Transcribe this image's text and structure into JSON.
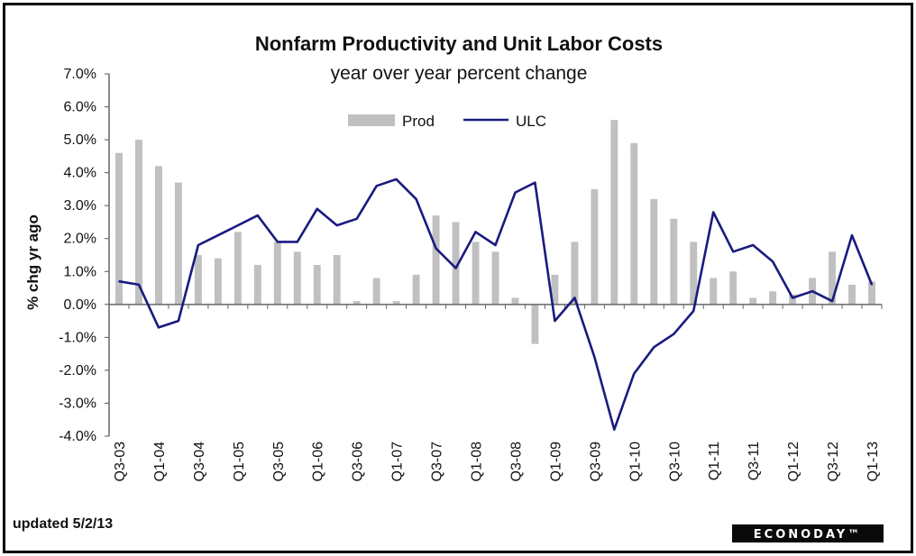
{
  "chart_data": {
    "type": "bar",
    "title": "Nonfarm Productivity and Unit Labor Costs",
    "subtitle": "year over year percent change",
    "ylabel": "% chg yr ago",
    "ylim": [
      -4.0,
      7.0
    ],
    "yticks": [
      "7.0%",
      "6.0%",
      "5.0%",
      "4.0%",
      "3.0%",
      "2.0%",
      "1.0%",
      "0.0%",
      "-1.0%",
      "-2.0%",
      "-3.0%",
      "-4.0%"
    ],
    "legend_position": "top-center",
    "grid": false,
    "categories": [
      "Q3-03",
      "Q4-03",
      "Q1-04",
      "Q2-04",
      "Q3-04",
      "Q4-04",
      "Q1-05",
      "Q2-05",
      "Q3-05",
      "Q4-05",
      "Q1-06",
      "Q2-06",
      "Q3-06",
      "Q4-06",
      "Q1-07",
      "Q2-07",
      "Q3-07",
      "Q4-07",
      "Q1-08",
      "Q2-08",
      "Q3-08",
      "Q4-08",
      "Q1-09",
      "Q2-09",
      "Q3-09",
      "Q4-09",
      "Q1-10",
      "Q2-10",
      "Q3-10",
      "Q4-10",
      "Q1-11",
      "Q2-11",
      "Q3-11",
      "Q4-11",
      "Q1-12",
      "Q2-12",
      "Q3-12",
      "Q4-12",
      "Q1-13"
    ],
    "xtick_labels": [
      "Q3-03",
      "Q1-04",
      "Q3-04",
      "Q1-05",
      "Q3-05",
      "Q1-06",
      "Q3-06",
      "Q1-07",
      "Q3-07",
      "Q1-08",
      "Q3-08",
      "Q1-09",
      "Q3-09",
      "Q1-10",
      "Q3-10",
      "Q1-11",
      "Q3-11",
      "Q1-12",
      "Q3-12",
      "Q1-13"
    ],
    "series": [
      {
        "name": "Prod",
        "type": "bar",
        "color": "#c0c0c0",
        "values": [
          4.6,
          5.0,
          4.2,
          3.7,
          1.5,
          1.4,
          2.2,
          1.2,
          1.9,
          1.6,
          1.2,
          1.5,
          0.1,
          0.8,
          0.1,
          0.9,
          2.7,
          2.5,
          1.9,
          1.6,
          0.2,
          -1.2,
          0.9,
          1.9,
          3.5,
          5.6,
          4.9,
          3.2,
          2.6,
          1.9,
          0.8,
          1.0,
          0.2,
          0.4,
          0.3,
          0.8,
          1.6,
          0.6,
          0.7
        ]
      },
      {
        "name": "ULC",
        "type": "line",
        "color": "#1a1a80",
        "values": [
          0.7,
          0.6,
          -0.7,
          -0.5,
          1.8,
          2.1,
          2.4,
          2.7,
          1.9,
          1.9,
          2.9,
          2.4,
          2.6,
          3.6,
          3.8,
          3.2,
          1.7,
          1.1,
          2.2,
          1.8,
          3.4,
          3.7,
          -0.5,
          0.2,
          -1.6,
          -3.8,
          -2.1,
          -1.3,
          -0.9,
          -0.2,
          2.8,
          1.6,
          1.8,
          1.3,
          0.2,
          0.4,
          0.1,
          2.1,
          0.6
        ]
      }
    ]
  },
  "footer": {
    "updated": "updated 5/2/13",
    "logo": "ECONODAY™"
  }
}
